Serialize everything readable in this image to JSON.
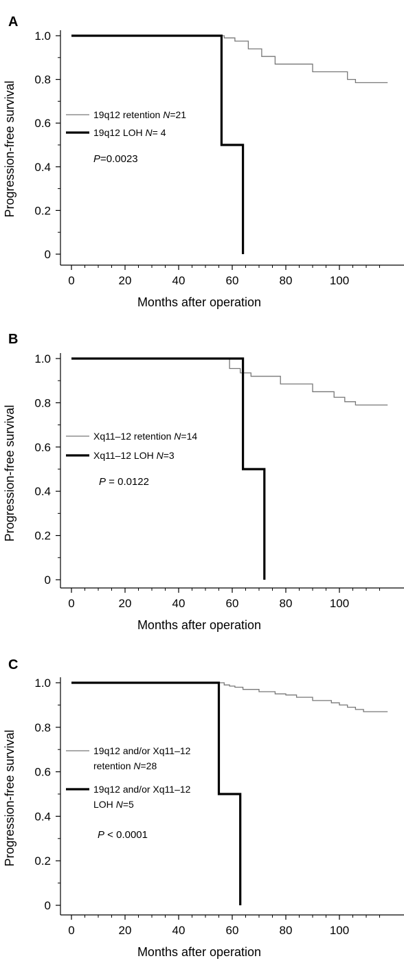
{
  "chart_data": [
    {
      "panel": "A",
      "type": "line",
      "subtype": "kaplan-meier-step",
      "xlabel": "Months after operation",
      "ylabel": "Progression-free survival",
      "xticks": [
        "0",
        "20",
        "40",
        "60",
        "80",
        "100"
      ],
      "yticks": [
        "0",
        "0.2",
        "0.4",
        "0.6",
        "0.8",
        "1.0"
      ],
      "xlim": [
        -5,
        118
      ],
      "ylim": [
        0,
        1
      ],
      "series": [
        {
          "name_parts": [
            {
              "t": "19q12 retention "
            },
            {
              "t": "N",
              "i": true
            },
            {
              "t": "=21"
            }
          ],
          "style": "thin",
          "color": "#777777",
          "x": [
            0,
            55,
            57,
            61,
            66,
            71,
            76,
            90,
            103,
            106,
            118
          ],
          "y": [
            1.0,
            1.0,
            0.99,
            0.975,
            0.94,
            0.905,
            0.87,
            0.835,
            0.8,
            0.785,
            0.785
          ]
        },
        {
          "name_parts": [
            {
              "t": "19q12 LOH "
            },
            {
              "t": "N",
              "i": true
            },
            {
              "t": "= 4"
            }
          ],
          "style": "thick",
          "color": "#000000",
          "x": [
            0,
            56,
            64
          ],
          "y": [
            1.0,
            0.5,
            0.0
          ]
        }
      ],
      "pvalue_parts": [
        {
          "t": "P",
          "i": true
        },
        {
          "t": "=0.0023"
        }
      ]
    },
    {
      "panel": "B",
      "type": "line",
      "subtype": "kaplan-meier-step",
      "xlabel": "Months after operation",
      "ylabel": "Progression-free survival",
      "xticks": [
        "0",
        "20",
        "40",
        "60",
        "80",
        "100"
      ],
      "yticks": [
        "0",
        "0.2",
        "0.4",
        "0.6",
        "0.8",
        "1.0"
      ],
      "xlim": [
        -5,
        118
      ],
      "ylim": [
        0,
        1
      ],
      "series": [
        {
          "name_parts": [
            {
              "t": "Xq11–12 retention "
            },
            {
              "t": "N",
              "i": true
            },
            {
              "t": "=14"
            }
          ],
          "style": "thin",
          "color": "#777777",
          "x": [
            0,
            59,
            63,
            67,
            78,
            90,
            98,
            102,
            106,
            118
          ],
          "y": [
            1.0,
            0.955,
            0.935,
            0.92,
            0.885,
            0.85,
            0.825,
            0.805,
            0.79,
            0.79
          ]
        },
        {
          "name_parts": [
            {
              "t": "Xq11–12 LOH "
            },
            {
              "t": "N",
              "i": true
            },
            {
              "t": "=3"
            }
          ],
          "style": "thick",
          "color": "#000000",
          "x": [
            0,
            64,
            72
          ],
          "y": [
            1.0,
            0.5,
            0.0
          ]
        }
      ],
      "pvalue_parts": [
        {
          "t": "P",
          "i": true
        },
        {
          "t": " = 0.0122"
        }
      ]
    },
    {
      "panel": "C",
      "type": "line",
      "subtype": "kaplan-meier-step",
      "xlabel": "Months after operation",
      "ylabel": "Progression-free survival",
      "xticks": [
        "0",
        "20",
        "40",
        "60",
        "80",
        "100"
      ],
      "yticks": [
        "0",
        "0.2",
        "0.4",
        "0.6",
        "0.8",
        "1.0"
      ],
      "xlim": [
        -5,
        118
      ],
      "ylim": [
        0,
        1
      ],
      "series": [
        {
          "name_lines": [
            [
              {
                "t": "19q12 and/or Xq11–12"
              }
            ],
            [
              {
                "t": "retention "
              },
              {
                "t": "N",
                "i": true
              },
              {
                "t": "=28"
              }
            ]
          ],
          "style": "thin",
          "color": "#777777",
          "x": [
            0,
            57,
            59,
            61,
            64,
            70,
            76,
            80,
            84,
            90,
            97,
            100,
            103,
            106,
            109,
            118
          ],
          "y": [
            1.0,
            0.99,
            0.985,
            0.98,
            0.97,
            0.96,
            0.95,
            0.945,
            0.935,
            0.92,
            0.91,
            0.9,
            0.89,
            0.88,
            0.87,
            0.87
          ]
        },
        {
          "name_lines": [
            [
              {
                "t": "19q12 and/or Xq11–12"
              }
            ],
            [
              {
                "t": "LOH "
              },
              {
                "t": "N",
                "i": true
              },
              {
                "t": "=5"
              }
            ]
          ],
          "style": "thick",
          "color": "#000000",
          "x": [
            0,
            55,
            63
          ],
          "y": [
            1.0,
            0.5,
            0.0
          ]
        }
      ],
      "pvalue_parts": [
        {
          "t": "P",
          "i": true
        },
        {
          "t": " < 0.0001"
        }
      ]
    }
  ]
}
